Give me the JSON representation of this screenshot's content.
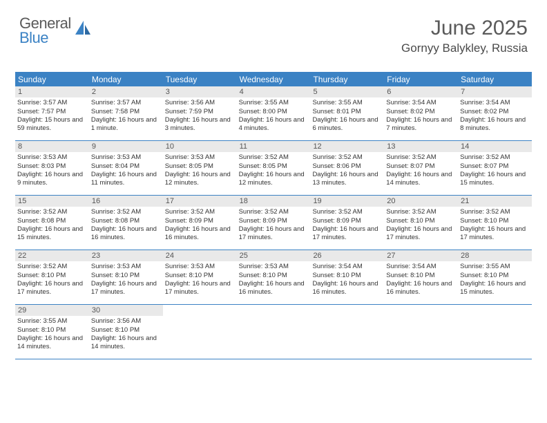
{
  "logo": {
    "word1": "General",
    "word2": "Blue"
  },
  "header": {
    "title": "June 2025",
    "location": "Gornyy Balykley, Russia"
  },
  "colors": {
    "accent": "#3b82c4",
    "header_text": "#ffffff",
    "daynum_bg": "#e9e9e9",
    "body_text": "#333333",
    "title_text": "#5a5a5a"
  },
  "calendar": {
    "day_labels": [
      "Sunday",
      "Monday",
      "Tuesday",
      "Wednesday",
      "Thursday",
      "Friday",
      "Saturday"
    ],
    "weeks": [
      [
        {
          "n": "1",
          "sunrise": "3:57 AM",
          "sunset": "7:57 PM",
          "daylight": "15 hours and 59 minutes."
        },
        {
          "n": "2",
          "sunrise": "3:57 AM",
          "sunset": "7:58 PM",
          "daylight": "16 hours and 1 minute."
        },
        {
          "n": "3",
          "sunrise": "3:56 AM",
          "sunset": "7:59 PM",
          "daylight": "16 hours and 3 minutes."
        },
        {
          "n": "4",
          "sunrise": "3:55 AM",
          "sunset": "8:00 PM",
          "daylight": "16 hours and 4 minutes."
        },
        {
          "n": "5",
          "sunrise": "3:55 AM",
          "sunset": "8:01 PM",
          "daylight": "16 hours and 6 minutes."
        },
        {
          "n": "6",
          "sunrise": "3:54 AM",
          "sunset": "8:02 PM",
          "daylight": "16 hours and 7 minutes."
        },
        {
          "n": "7",
          "sunrise": "3:54 AM",
          "sunset": "8:02 PM",
          "daylight": "16 hours and 8 minutes."
        }
      ],
      [
        {
          "n": "8",
          "sunrise": "3:53 AM",
          "sunset": "8:03 PM",
          "daylight": "16 hours and 9 minutes."
        },
        {
          "n": "9",
          "sunrise": "3:53 AM",
          "sunset": "8:04 PM",
          "daylight": "16 hours and 11 minutes."
        },
        {
          "n": "10",
          "sunrise": "3:53 AM",
          "sunset": "8:05 PM",
          "daylight": "16 hours and 12 minutes."
        },
        {
          "n": "11",
          "sunrise": "3:52 AM",
          "sunset": "8:05 PM",
          "daylight": "16 hours and 12 minutes."
        },
        {
          "n": "12",
          "sunrise": "3:52 AM",
          "sunset": "8:06 PM",
          "daylight": "16 hours and 13 minutes."
        },
        {
          "n": "13",
          "sunrise": "3:52 AM",
          "sunset": "8:07 PM",
          "daylight": "16 hours and 14 minutes."
        },
        {
          "n": "14",
          "sunrise": "3:52 AM",
          "sunset": "8:07 PM",
          "daylight": "16 hours and 15 minutes."
        }
      ],
      [
        {
          "n": "15",
          "sunrise": "3:52 AM",
          "sunset": "8:08 PM",
          "daylight": "16 hours and 15 minutes."
        },
        {
          "n": "16",
          "sunrise": "3:52 AM",
          "sunset": "8:08 PM",
          "daylight": "16 hours and 16 minutes."
        },
        {
          "n": "17",
          "sunrise": "3:52 AM",
          "sunset": "8:09 PM",
          "daylight": "16 hours and 16 minutes."
        },
        {
          "n": "18",
          "sunrise": "3:52 AM",
          "sunset": "8:09 PM",
          "daylight": "16 hours and 17 minutes."
        },
        {
          "n": "19",
          "sunrise": "3:52 AM",
          "sunset": "8:09 PM",
          "daylight": "16 hours and 17 minutes."
        },
        {
          "n": "20",
          "sunrise": "3:52 AM",
          "sunset": "8:10 PM",
          "daylight": "16 hours and 17 minutes."
        },
        {
          "n": "21",
          "sunrise": "3:52 AM",
          "sunset": "8:10 PM",
          "daylight": "16 hours and 17 minutes."
        }
      ],
      [
        {
          "n": "22",
          "sunrise": "3:52 AM",
          "sunset": "8:10 PM",
          "daylight": "16 hours and 17 minutes."
        },
        {
          "n": "23",
          "sunrise": "3:53 AM",
          "sunset": "8:10 PM",
          "daylight": "16 hours and 17 minutes."
        },
        {
          "n": "24",
          "sunrise": "3:53 AM",
          "sunset": "8:10 PM",
          "daylight": "16 hours and 17 minutes."
        },
        {
          "n": "25",
          "sunrise": "3:53 AM",
          "sunset": "8:10 PM",
          "daylight": "16 hours and 16 minutes."
        },
        {
          "n": "26",
          "sunrise": "3:54 AM",
          "sunset": "8:10 PM",
          "daylight": "16 hours and 16 minutes."
        },
        {
          "n": "27",
          "sunrise": "3:54 AM",
          "sunset": "8:10 PM",
          "daylight": "16 hours and 16 minutes."
        },
        {
          "n": "28",
          "sunrise": "3:55 AM",
          "sunset": "8:10 PM",
          "daylight": "16 hours and 15 minutes."
        }
      ],
      [
        {
          "n": "29",
          "sunrise": "3:55 AM",
          "sunset": "8:10 PM",
          "daylight": "16 hours and 14 minutes."
        },
        {
          "n": "30",
          "sunrise": "3:56 AM",
          "sunset": "8:10 PM",
          "daylight": "16 hours and 14 minutes."
        },
        null,
        null,
        null,
        null,
        null
      ]
    ]
  },
  "labels": {
    "sunrise_prefix": "Sunrise: ",
    "sunset_prefix": "Sunset: ",
    "daylight_prefix": "Daylight: "
  }
}
